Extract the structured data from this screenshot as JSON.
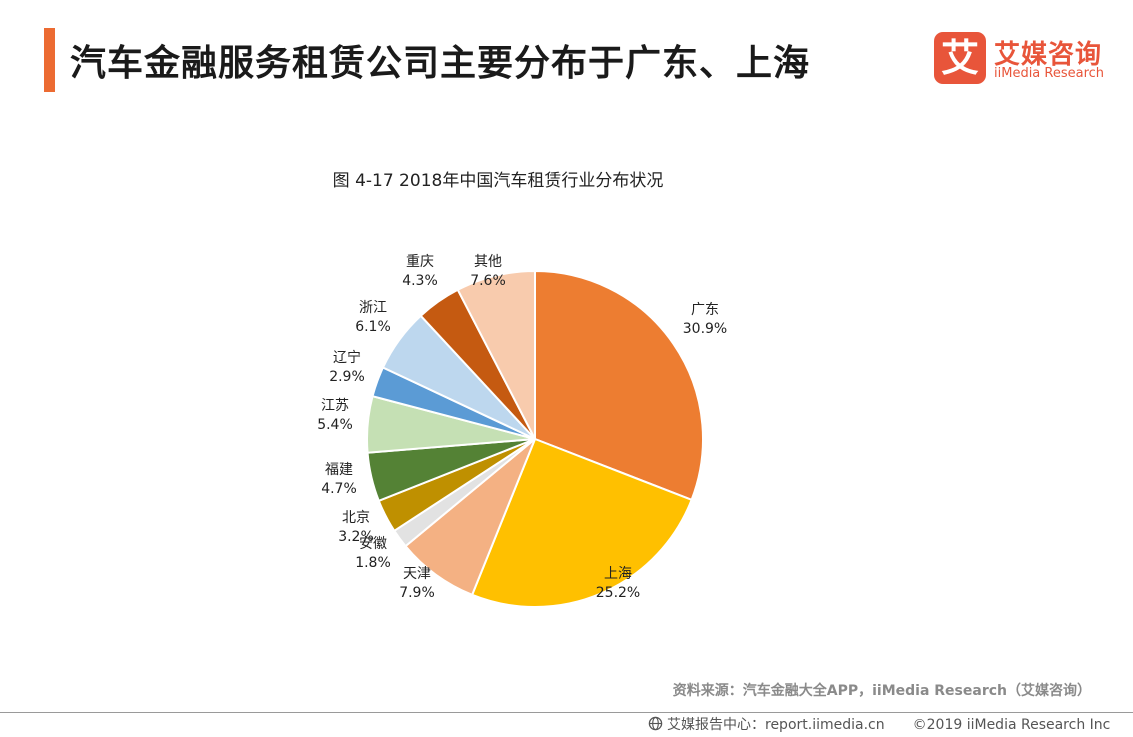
{
  "header": {
    "title": "汽车金融服务租赁公司主要分布于广东、上海"
  },
  "logo": {
    "mark": "艾",
    "name_cn": "艾媒咨询",
    "name_en": "iiMedia Research"
  },
  "chart_data": {
    "type": "pie",
    "title": "图 4-17  2018年中国汽车租赁行业分布状况",
    "slices": [
      {
        "label": "广东",
        "value": 30.9,
        "display": "30.9%",
        "color": "#ed7d31"
      },
      {
        "label": "上海",
        "value": 25.2,
        "display": "25.2%",
        "color": "#ffc000"
      },
      {
        "label": "天津",
        "value": 7.9,
        "display": "7.9%",
        "color": "#f4b183"
      },
      {
        "label": "安徽",
        "value": 1.8,
        "display": "1.8%",
        "color": "#e2e2e2"
      },
      {
        "label": "北京",
        "value": 3.2,
        "display": "3.2%",
        "color": "#bf9000"
      },
      {
        "label": "福建",
        "value": 4.7,
        "display": "4.7%",
        "color": "#548235"
      },
      {
        "label": "江苏",
        "value": 5.4,
        "display": "5.4%",
        "color": "#c5e0b4"
      },
      {
        "label": "辽宁",
        "value": 2.9,
        "display": "2.9%",
        "color": "#5b9bd5"
      },
      {
        "label": "浙江",
        "value": 6.1,
        "display": "6.1%",
        "color": "#bdd7ee"
      },
      {
        "label": "重庆",
        "value": 4.3,
        "display": "4.3%",
        "color": "#c55a11"
      },
      {
        "label": "其他",
        "value": 7.6,
        "display": "7.6%",
        "color": "#f8cbad"
      }
    ]
  },
  "source": "资料来源：汽车金融大全APP，iiMedia Research（艾媒咨询）",
  "footer": {
    "site": "艾媒报告中心：report.iimedia.cn",
    "copyright": "©2019  iiMedia Research  Inc"
  }
}
